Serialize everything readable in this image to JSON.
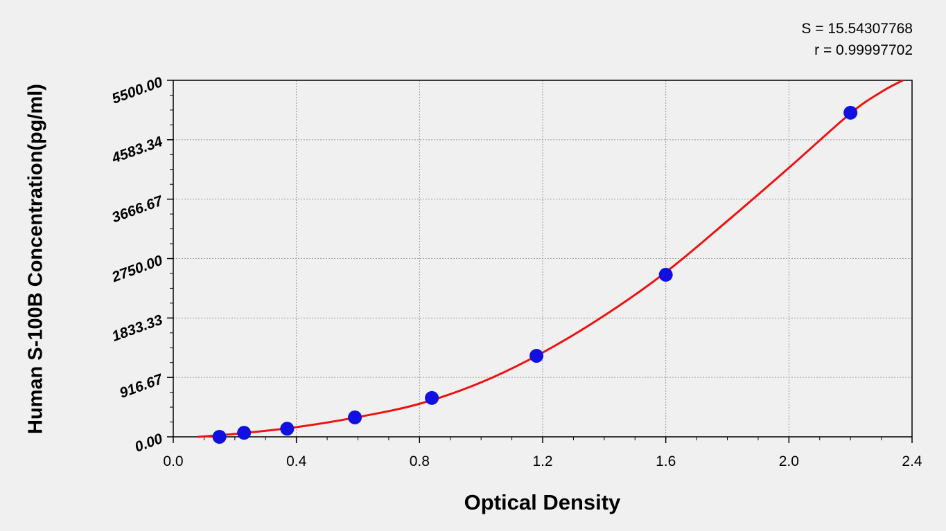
{
  "stats": {
    "s_text": "S = 15.54307768",
    "r_text": "r = 0.99997702"
  },
  "chart_data": {
    "type": "scatter",
    "xlabel": "Optical Density",
    "ylabel": "Human S-100B Concentration(pg/ml)",
    "xlim": [
      0,
      2.4
    ],
    "ylim": [
      0,
      5500
    ],
    "x_ticks": [
      "0.0",
      "0.4",
      "0.8",
      "1.2",
      "1.6",
      "2.0",
      "2.4"
    ],
    "y_ticks": [
      "0.00",
      "916.67",
      "1833.33",
      "2750.00",
      "3666.67",
      "4583.34",
      "5500.00"
    ],
    "grid": true,
    "series": [
      {
        "kind": "points",
        "color": "#1010e0",
        "x": [
          0.15,
          0.23,
          0.37,
          0.59,
          0.84,
          1.18,
          1.6,
          2.2
        ],
        "y": [
          0,
          62.5,
          125,
          300,
          600,
          1250,
          2500,
          5000
        ]
      },
      {
        "kind": "fit-curve",
        "color": "#ee1111",
        "x": [
          0.08,
          0.2,
          0.4,
          0.6,
          0.8,
          1.0,
          1.2,
          1.4,
          1.6,
          1.8,
          2.0,
          2.2,
          2.3,
          2.37
        ],
        "y": [
          0,
          45,
          150,
          305,
          510,
          840,
          1300,
          1870,
          2540,
          3330,
          4150,
          4990,
          5320,
          5500
        ]
      }
    ]
  }
}
